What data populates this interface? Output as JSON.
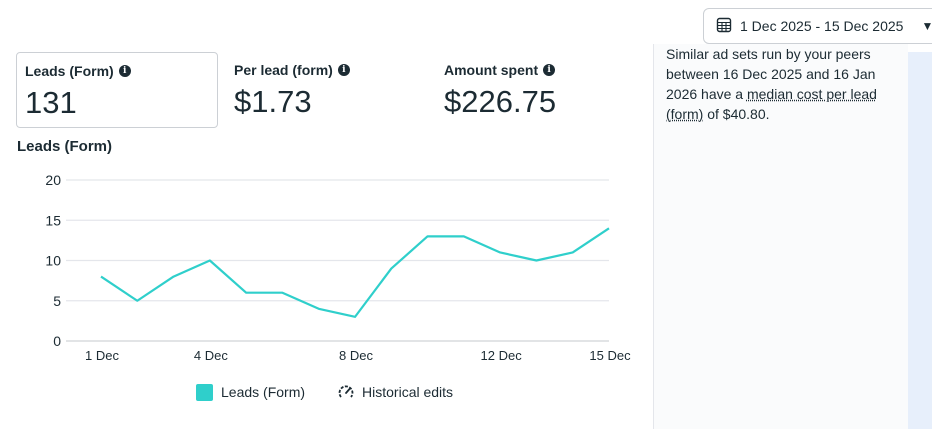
{
  "date_range": {
    "label": "1 Dec 2025 - 15 Dec 2025",
    "icon": "calendar-icon"
  },
  "metrics": [
    {
      "label": "Leads (Form)",
      "value": "131",
      "selected": true
    },
    {
      "label": "Per lead (form)",
      "value": "$1.73"
    },
    {
      "label": "Amount spent",
      "value": "$226.75"
    }
  ],
  "peer_note": {
    "before": "Similar ad sets run by your peers between 16 Dec 2025 and 16 Jan 2026 have a ",
    "link": "median cost per lead (form)",
    "after": " of $40.80."
  },
  "colors": {
    "series": "#2fcfcb",
    "grid": "#e4e6eb"
  },
  "chart_data": {
    "type": "line",
    "title": "Leads (Form)",
    "x": [
      "1 Dec",
      "2 Dec",
      "3 Dec",
      "4 Dec",
      "5 Dec",
      "6 Dec",
      "7 Dec",
      "8 Dec",
      "9 Dec",
      "10 Dec",
      "11 Dec",
      "12 Dec",
      "13 Dec",
      "14 Dec",
      "15 Dec"
    ],
    "xticks": [
      "1 Dec",
      "4 Dec",
      "8 Dec",
      "12 Dec",
      "15 Dec"
    ],
    "yticks": [
      0,
      5,
      10,
      15,
      20
    ],
    "ylim": [
      0,
      20
    ],
    "series": [
      {
        "name": "Leads (Form)",
        "values": [
          8,
          5,
          8,
          10,
          6,
          6,
          4,
          3,
          9,
          13,
          13,
          11,
          10,
          11,
          14
        ]
      }
    ],
    "legend": [
      "Leads (Form)",
      "Historical edits"
    ],
    "grid": true
  }
}
